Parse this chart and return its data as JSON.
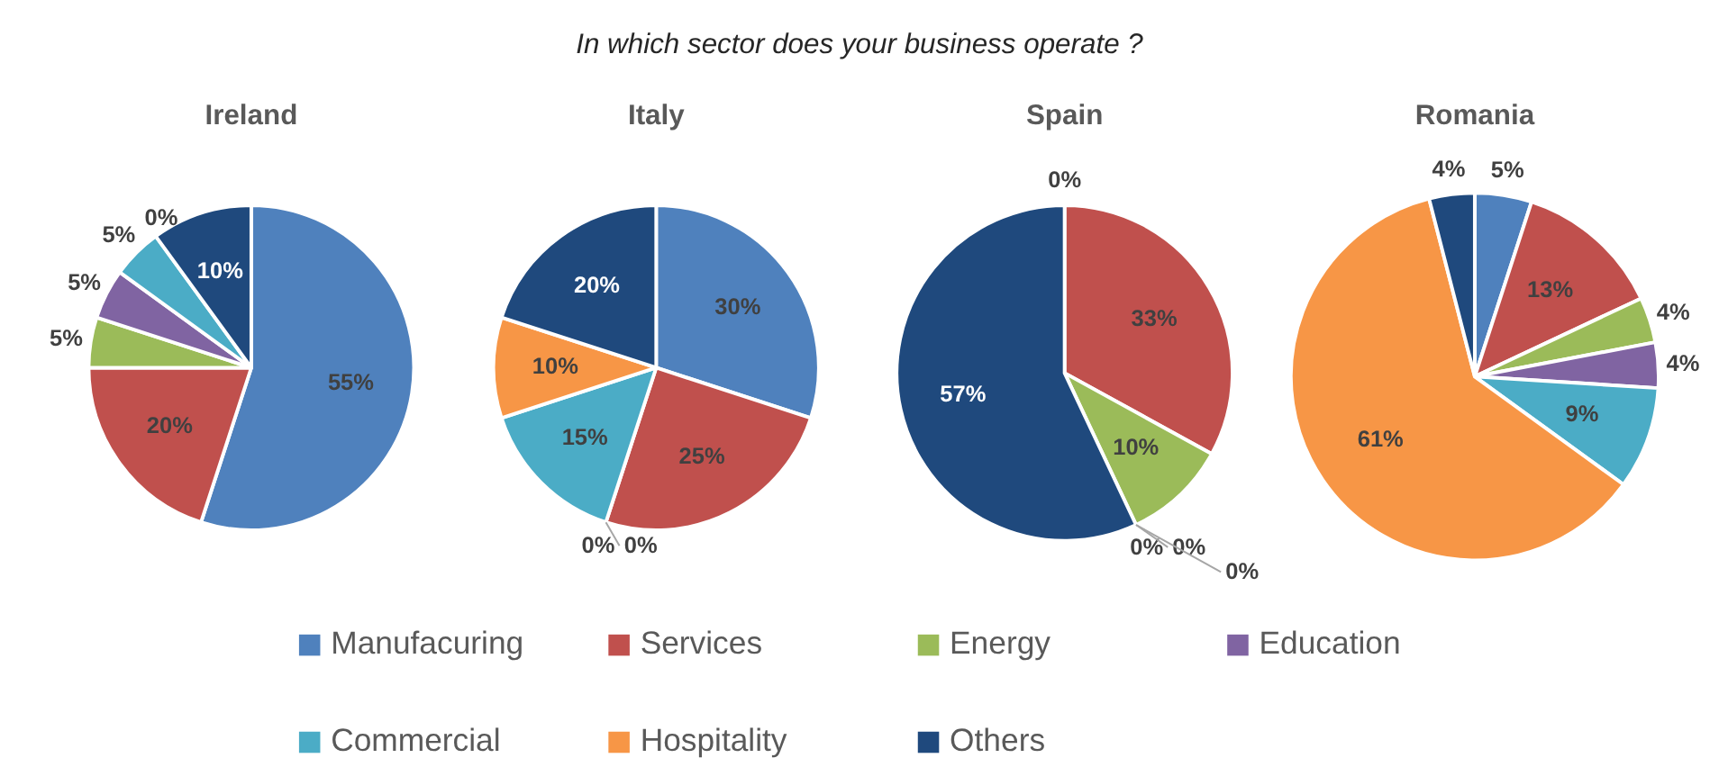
{
  "chart_data": [
    {
      "type": "pie",
      "title": "Ireland",
      "annotations": [
        "In which sector does your business operate ?"
      ],
      "legend": "bottom",
      "categories": [
        "Manufacuring",
        "Services",
        "Energy",
        "Education",
        "Commercial",
        "Hospitality",
        "Others"
      ],
      "values": [
        55,
        20,
        5,
        5,
        5,
        0,
        10
      ],
      "value_labels": [
        "55%",
        "20%",
        "5%",
        "5%",
        "5%",
        "0%",
        "10%"
      ],
      "colors": [
        "#4f81bd",
        "#c0504d",
        "#9bbb59",
        "#8064a2",
        "#4bacc6",
        "#f79646",
        "#1f497d"
      ]
    },
    {
      "type": "pie",
      "title": "Italy",
      "categories": [
        null,
        null,
        null,
        null,
        null,
        null,
        null
      ],
      "values": [
        30,
        25,
        0,
        0,
        15,
        10,
        20
      ],
      "value_labels": [
        "30%",
        "25%",
        "0%",
        "0%",
        "15%",
        "10%",
        "20%"
      ],
      "colors": [
        "#4f81bd",
        "#c0504d",
        "#9bbb59",
        "#8064a2",
        "#4bacc6",
        "#f79646",
        "#1f497d"
      ]
    },
    {
      "type": "pie",
      "title": "Spain",
      "categories": [
        null,
        null,
        null,
        null,
        null,
        null,
        null
      ],
      "values": [
        0,
        33,
        10,
        0,
        0,
        0,
        57
      ],
      "value_labels": [
        "0%",
        "33%",
        "10%",
        "0%",
        "0%",
        "0%",
        "57%"
      ],
      "colors": [
        "#4f81bd",
        "#c0504d",
        "#9bbb59",
        "#8064a2",
        "#4bacc6",
        "#f79646",
        "#1f497d"
      ]
    },
    {
      "type": "pie",
      "title": "Romania",
      "categories": [
        null,
        null,
        null,
        null,
        null,
        null,
        null
      ],
      "values": [
        5,
        13,
        4,
        4,
        9,
        61,
        4
      ],
      "value_labels": [
        "5%",
        "13%",
        "4%",
        "4%",
        "9%",
        "61%",
        "4%"
      ],
      "colors": [
        "#4f81bd",
        "#c0504d",
        "#9bbb59",
        "#8064a2",
        "#4bacc6",
        "#f79646",
        "#1f497d"
      ]
    }
  ]
}
